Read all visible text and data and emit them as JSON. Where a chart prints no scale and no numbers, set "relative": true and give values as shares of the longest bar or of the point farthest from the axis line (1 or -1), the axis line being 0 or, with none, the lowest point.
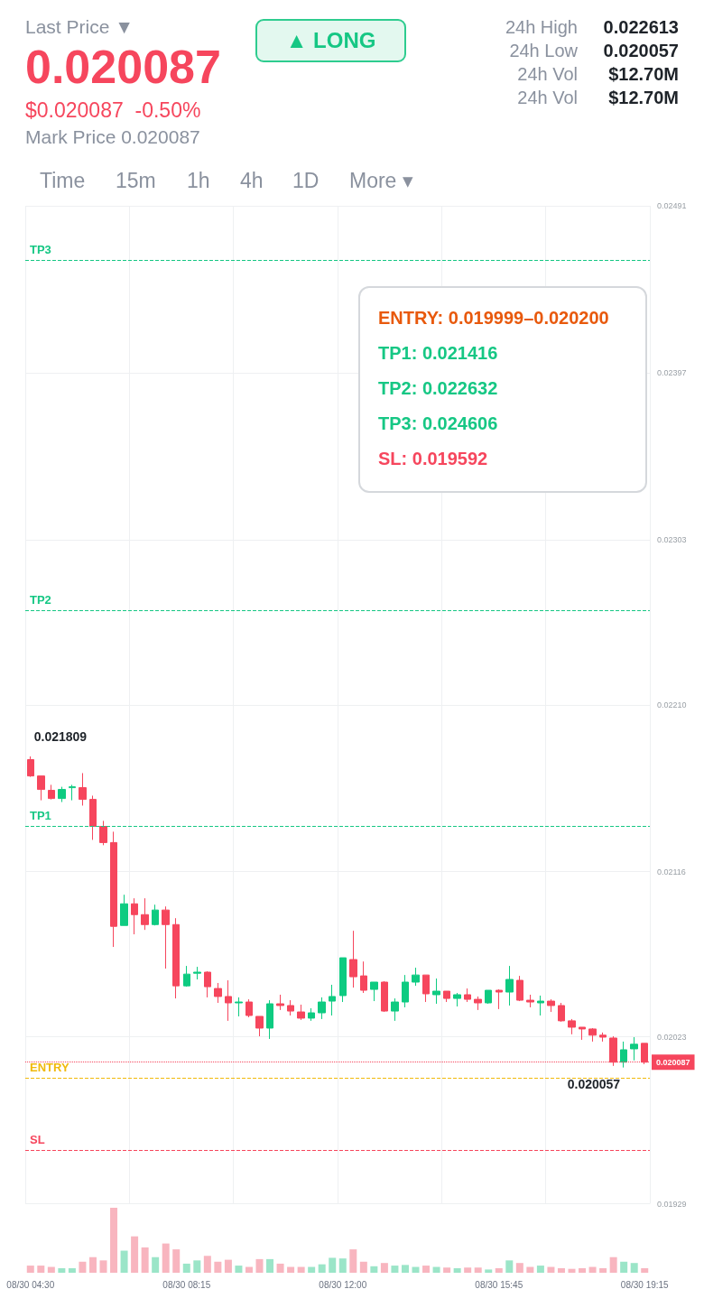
{
  "chart_data": [
    {
      "type": "other",
      "annotations": [
        "Last Price ▼",
        "0.020087",
        "$0.020087  -0.50%",
        "Mark Price 0.020087",
        "▲ LONG",
        "24h High",
        "0.022613",
        "24h Low",
        "0.020057",
        "24h Vol",
        "$12.70M",
        "24h Vol",
        "$12.70M",
        "Time",
        "15m",
        "1h",
        "4h",
        "1D",
        "More ▾"
      ]
    },
    {
      "type": "candlestick",
      "categories": [
        "08/30 04:30",
        null,
        null,
        null,
        null,
        null,
        null,
        null,
        null,
        null,
        null,
        null,
        null,
        null,
        null,
        "08/30 08:15",
        null,
        null,
        null,
        null,
        null,
        null,
        null,
        null,
        null,
        null,
        null,
        null,
        null,
        null,
        "08/30 12:00",
        null,
        null,
        null,
        null,
        null,
        null,
        null,
        null,
        null,
        null,
        null,
        null,
        null,
        null,
        "08/30 15:45",
        null,
        null,
        null,
        null,
        null,
        null,
        null,
        null,
        null,
        null,
        null,
        null,
        null,
        "08/30 19:15"
      ],
      "ohlc": [
        [
          0.021791,
          0.021809,
          0.021694,
          0.021699
        ],
        [
          0.021699,
          0.021699,
          0.021562,
          0.021623
        ],
        [
          0.021618,
          0.021649,
          0.021567,
          0.021572
        ],
        [
          0.021572,
          0.021638,
          0.021552,
          0.021623
        ],
        [
          0.021633,
          0.021649,
          0.021562,
          0.021638
        ],
        [
          0.021633,
          0.021715,
          0.021532,
          0.021567
        ],
        [
          0.021567,
          0.021588,
          0.021339,
          0.021415
        ],
        [
          0.021415,
          0.021446,
          0.021309,
          0.021324
        ],
        [
          0.021324,
          0.021385,
          0.020736,
          0.020852
        ],
        [
          0.020857,
          0.02103,
          0.020857,
          0.020979
        ],
        [
          0.020979,
          0.02101,
          0.020807,
          0.020918
        ],
        [
          0.020918,
          0.02101,
          0.020832,
          0.020862
        ],
        [
          0.020862,
          0.020974,
          0.020857,
          0.020944
        ],
        [
          0.020944,
          0.020964,
          0.020614,
          0.020862
        ],
        [
          0.020862,
          0.020898,
          0.020446,
          0.020517
        ],
        [
          0.020517,
          0.020629,
          0.020512,
          0.020583
        ],
        [
          0.020588,
          0.020624,
          0.020553,
          0.020594
        ],
        [
          0.020594,
          0.020599,
          0.020452,
          0.020512
        ],
        [
          0.020502,
          0.020533,
          0.020421,
          0.020457
        ],
        [
          0.020457,
          0.020548,
          0.02032,
          0.020421
        ],
        [
          0.020421,
          0.020452,
          0.020345,
          0.020426
        ],
        [
          0.020426,
          0.020441,
          0.02034,
          0.02035
        ],
        [
          0.020345,
          0.020345,
          0.020233,
          0.020279
        ],
        [
          0.020279,
          0.020436,
          0.020218,
          0.020416
        ],
        [
          0.020416,
          0.020467,
          0.020381,
          0.020406
        ],
        [
          0.020406,
          0.020436,
          0.02035,
          0.020375
        ],
        [
          0.02037,
          0.020411,
          0.020325,
          0.020335
        ],
        [
          0.020335,
          0.020391,
          0.02032,
          0.020365
        ],
        [
          0.020365,
          0.020452,
          0.02033,
          0.020426
        ],
        [
          0.020431,
          0.020523,
          0.02035,
          0.020457
        ],
        [
          0.020462,
          0.020675,
          0.020426,
          0.020675
        ],
        [
          0.020665,
          0.020827,
          0.020507,
          0.020568
        ],
        [
          0.020573,
          0.020654,
          0.020477,
          0.020492
        ],
        [
          0.020497,
          0.020538,
          0.020431,
          0.020538
        ],
        [
          0.020538,
          0.020543,
          0.02037,
          0.020375
        ],
        [
          0.020375,
          0.020446,
          0.02032,
          0.020426
        ],
        [
          0.020426,
          0.020578,
          0.020396,
          0.020538
        ],
        [
          0.020538,
          0.020619,
          0.020517,
          0.020578
        ],
        [
          0.020578,
          0.020578,
          0.020426,
          0.020472
        ],
        [
          0.020467,
          0.020558,
          0.020416,
          0.020487
        ],
        [
          0.020487,
          0.020487,
          0.020426,
          0.020446
        ],
        [
          0.020446,
          0.020477,
          0.020401,
          0.020467
        ],
        [
          0.020467,
          0.020502,
          0.020426,
          0.020441
        ],
        [
          0.020441,
          0.020457,
          0.020381,
          0.020421
        ],
        [
          0.020421,
          0.020492,
          0.020416,
          0.020492
        ],
        [
          0.020492,
          0.020497,
          0.020386,
          0.020482
        ],
        [
          0.020482,
          0.020629,
          0.020406,
          0.020553
        ],
        [
          0.020548,
          0.020573,
          0.020431,
          0.020436
        ],
        [
          0.020436,
          0.020467,
          0.020396,
          0.020426
        ],
        [
          0.020421,
          0.020462,
          0.02035,
          0.020431
        ],
        [
          0.020431,
          0.020441,
          0.02037,
          0.020406
        ],
        [
          0.020406,
          0.020421,
          0.020315,
          0.02032
        ],
        [
          0.02032,
          0.02033,
          0.020244,
          0.020284
        ],
        [
          0.020284,
          0.020284,
          0.020213,
          0.020274
        ],
        [
          0.020274,
          0.020279,
          0.020203,
          0.020239
        ],
        [
          0.020239,
          0.020254,
          0.020203,
          0.020228
        ],
        [
          0.020223,
          0.020233,
          0.020066,
          0.020087
        ],
        [
          0.020087,
          0.020203,
          0.020057,
          0.020157
        ],
        [
          0.020162,
          0.020228,
          0.020097,
          0.020188
        ],
        [
          0.020193,
          0.020193,
          0.020076,
          0.020087
        ]
      ],
      "ylim": [
        0.01929,
        0.02491
      ],
      "yticks": [
        0.01929,
        0.02023,
        0.02116,
        {
          "value": 0.0221,
          "label": "0.02210"
        },
        0.02303,
        0.02397,
        0.02491
      ],
      "grid": true,
      "tick_labels": "y",
      "ref_lines": [
        {
          "axis": "y",
          "value": 0.024606,
          "label": "TP3",
          "color": "#16c784",
          "line_style": "dashed"
        },
        {
          "axis": "y",
          "value": 0.022632,
          "label": "TP2",
          "color": "#16c784",
          "line_style": "dashed"
        },
        {
          "axis": "y",
          "value": 0.021416,
          "label": "TP1",
          "color": "#16c784",
          "line_style": "dashed"
        },
        {
          "axis": "y",
          "value": 0.019999,
          "label": "ENTRY",
          "color": "#f0b90b",
          "line_style": "dashed"
        },
        {
          "axis": "y",
          "value": 0.019592,
          "label": "SL",
          "color": "#f6465d",
          "line_style": "dashed"
        },
        {
          "axis": "y",
          "value": 0.020087,
          "label": "0.020087",
          "color": "#f6465d",
          "line_style": "dotted"
        }
      ],
      "annotations": [
        "ENTRY: 0.019999–0.020200",
        "TP1: 0.021416",
        "TP2: 0.022632",
        "TP3: 0.024606",
        "SL: 0.019592",
        {
          "text": "0.021809",
          "x": "08/30 04:30",
          "y": 0.021809
        },
        "0.020057"
      ]
    },
    {
      "type": "bar",
      "relative": true,
      "tick_labels": "x",
      "categories": [
        "08/30 04:30",
        null,
        null,
        null,
        null,
        null,
        null,
        null,
        null,
        null,
        null,
        null,
        null,
        null,
        null,
        "08/30 08:15",
        null,
        null,
        null,
        null,
        null,
        null,
        null,
        null,
        null,
        null,
        null,
        null,
        null,
        null,
        "08/30 12:00",
        null,
        null,
        null,
        null,
        null,
        null,
        null,
        null,
        null,
        null,
        null,
        null,
        null,
        null,
        "08/30 15:45",
        null,
        null,
        null,
        null,
        null,
        null,
        null,
        null,
        null,
        null,
        null,
        null,
        null,
        "08/30 19:15"
      ],
      "values": [
        0.11,
        0.11,
        0.09,
        0.07,
        0.07,
        0.17,
        0.24,
        0.19,
        1,
        0.34,
        0.56,
        0.39,
        0.24,
        0.45,
        0.36,
        0.14,
        0.19,
        0.26,
        0.17,
        0.2,
        0.11,
        0.09,
        0.21,
        0.21,
        0.14,
        0.09,
        0.09,
        0.09,
        0.13,
        0.23,
        0.22,
        0.36,
        0.17,
        0.1,
        0.15,
        0.11,
        0.12,
        0.09,
        0.11,
        0.09,
        0.08,
        0.07,
        0.08,
        0.08,
        0.05,
        0.07,
        0.19,
        0.15,
        0.09,
        0.11,
        0.09,
        0.07,
        0.06,
        0.07,
        0.09,
        0.07,
        0.24,
        0.17,
        0.15,
        0.07
      ],
      "colors": [
        "#f8b5bf",
        "#f8b5bf",
        "#f8b5bf",
        "#9be5c8",
        "#9be5c8",
        "#f8b5bf",
        "#f8b5bf",
        "#f8b5bf",
        "#f8b5bf",
        "#9be5c8",
        "#f8b5bf",
        "#f8b5bf",
        "#9be5c8",
        "#f8b5bf",
        "#f8b5bf",
        "#9be5c8",
        "#9be5c8",
        "#f8b5bf",
        "#f8b5bf",
        "#f8b5bf",
        "#9be5c8",
        "#f8b5bf",
        "#f8b5bf",
        "#9be5c8",
        "#f8b5bf",
        "#f8b5bf",
        "#f8b5bf",
        "#9be5c8",
        "#9be5c8",
        "#9be5c8",
        "#9be5c8",
        "#f8b5bf",
        "#f8b5bf",
        "#9be5c8",
        "#f8b5bf",
        "#9be5c8",
        "#9be5c8",
        "#9be5c8",
        "#f8b5bf",
        "#9be5c8",
        "#f8b5bf",
        "#9be5c8",
        "#f8b5bf",
        "#f8b5bf",
        "#9be5c8",
        "#f8b5bf",
        "#9be5c8",
        "#f8b5bf",
        "#f8b5bf",
        "#9be5c8",
        "#f8b5bf",
        "#f8b5bf",
        "#f8b5bf",
        "#f8b5bf",
        "#f8b5bf",
        "#f8b5bf",
        "#f8b5bf",
        "#9be5c8",
        "#9be5c8",
        "#f8b5bf"
      ]
    }
  ]
}
